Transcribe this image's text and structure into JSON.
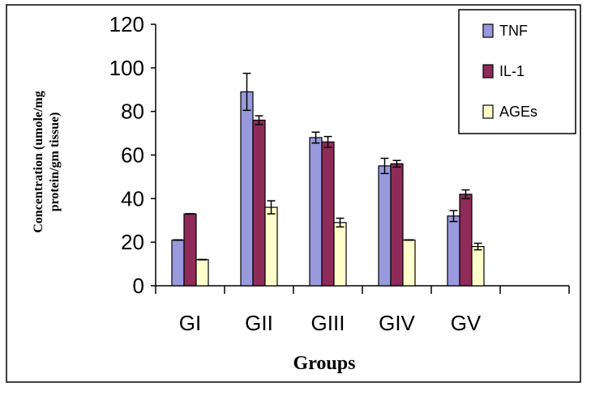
{
  "chart_data": {
    "type": "bar",
    "title": "",
    "xlabel": "Groups",
    "ylabel_line1": "Concentration (umole/mg",
    "ylabel_line2": "protein/gm tissue)",
    "categories": [
      "GI",
      "GII",
      "GIII",
      "GIV",
      "GV"
    ],
    "ylim": [
      0,
      120
    ],
    "yticks": [
      0,
      20,
      40,
      60,
      80,
      100,
      120
    ],
    "grid": false,
    "legend_position": "top-right",
    "series": [
      {
        "name": "TNF",
        "color": "#9999dd",
        "values": [
          21,
          89,
          68,
          55,
          32
        ],
        "errors": [
          0,
          8.5,
          2.5,
          3.5,
          2.5
        ]
      },
      {
        "name": "IL-1",
        "color": "#8e2b58",
        "values": [
          33,
          76,
          66,
          56,
          42
        ],
        "errors": [
          0,
          2,
          2.5,
          1.5,
          2
        ]
      },
      {
        "name": "AGEs",
        "color": "#ffffcc",
        "values": [
          12,
          36,
          29,
          21,
          18
        ],
        "errors": [
          0,
          3,
          2,
          0,
          1.5
        ]
      }
    ]
  }
}
